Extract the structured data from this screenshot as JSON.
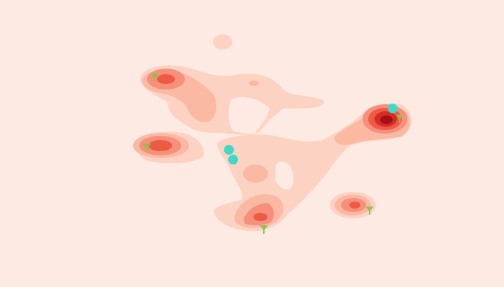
{
  "map": {
    "background_color": "#fdebe3",
    "heatmap_palette": [
      "#fcd3c3",
      "#fbb9a3",
      "#f7907b",
      "#ef5a45",
      "#d72a22",
      "#a50f15"
    ],
    "marker_color": "#40d8c8",
    "tree_icon_color": "#8bc34a",
    "hotspot_count": 6,
    "marker_count": 3,
    "tree_icon_count": 6,
    "icon_names": [
      "tree-icon",
      "location-marker"
    ]
  }
}
